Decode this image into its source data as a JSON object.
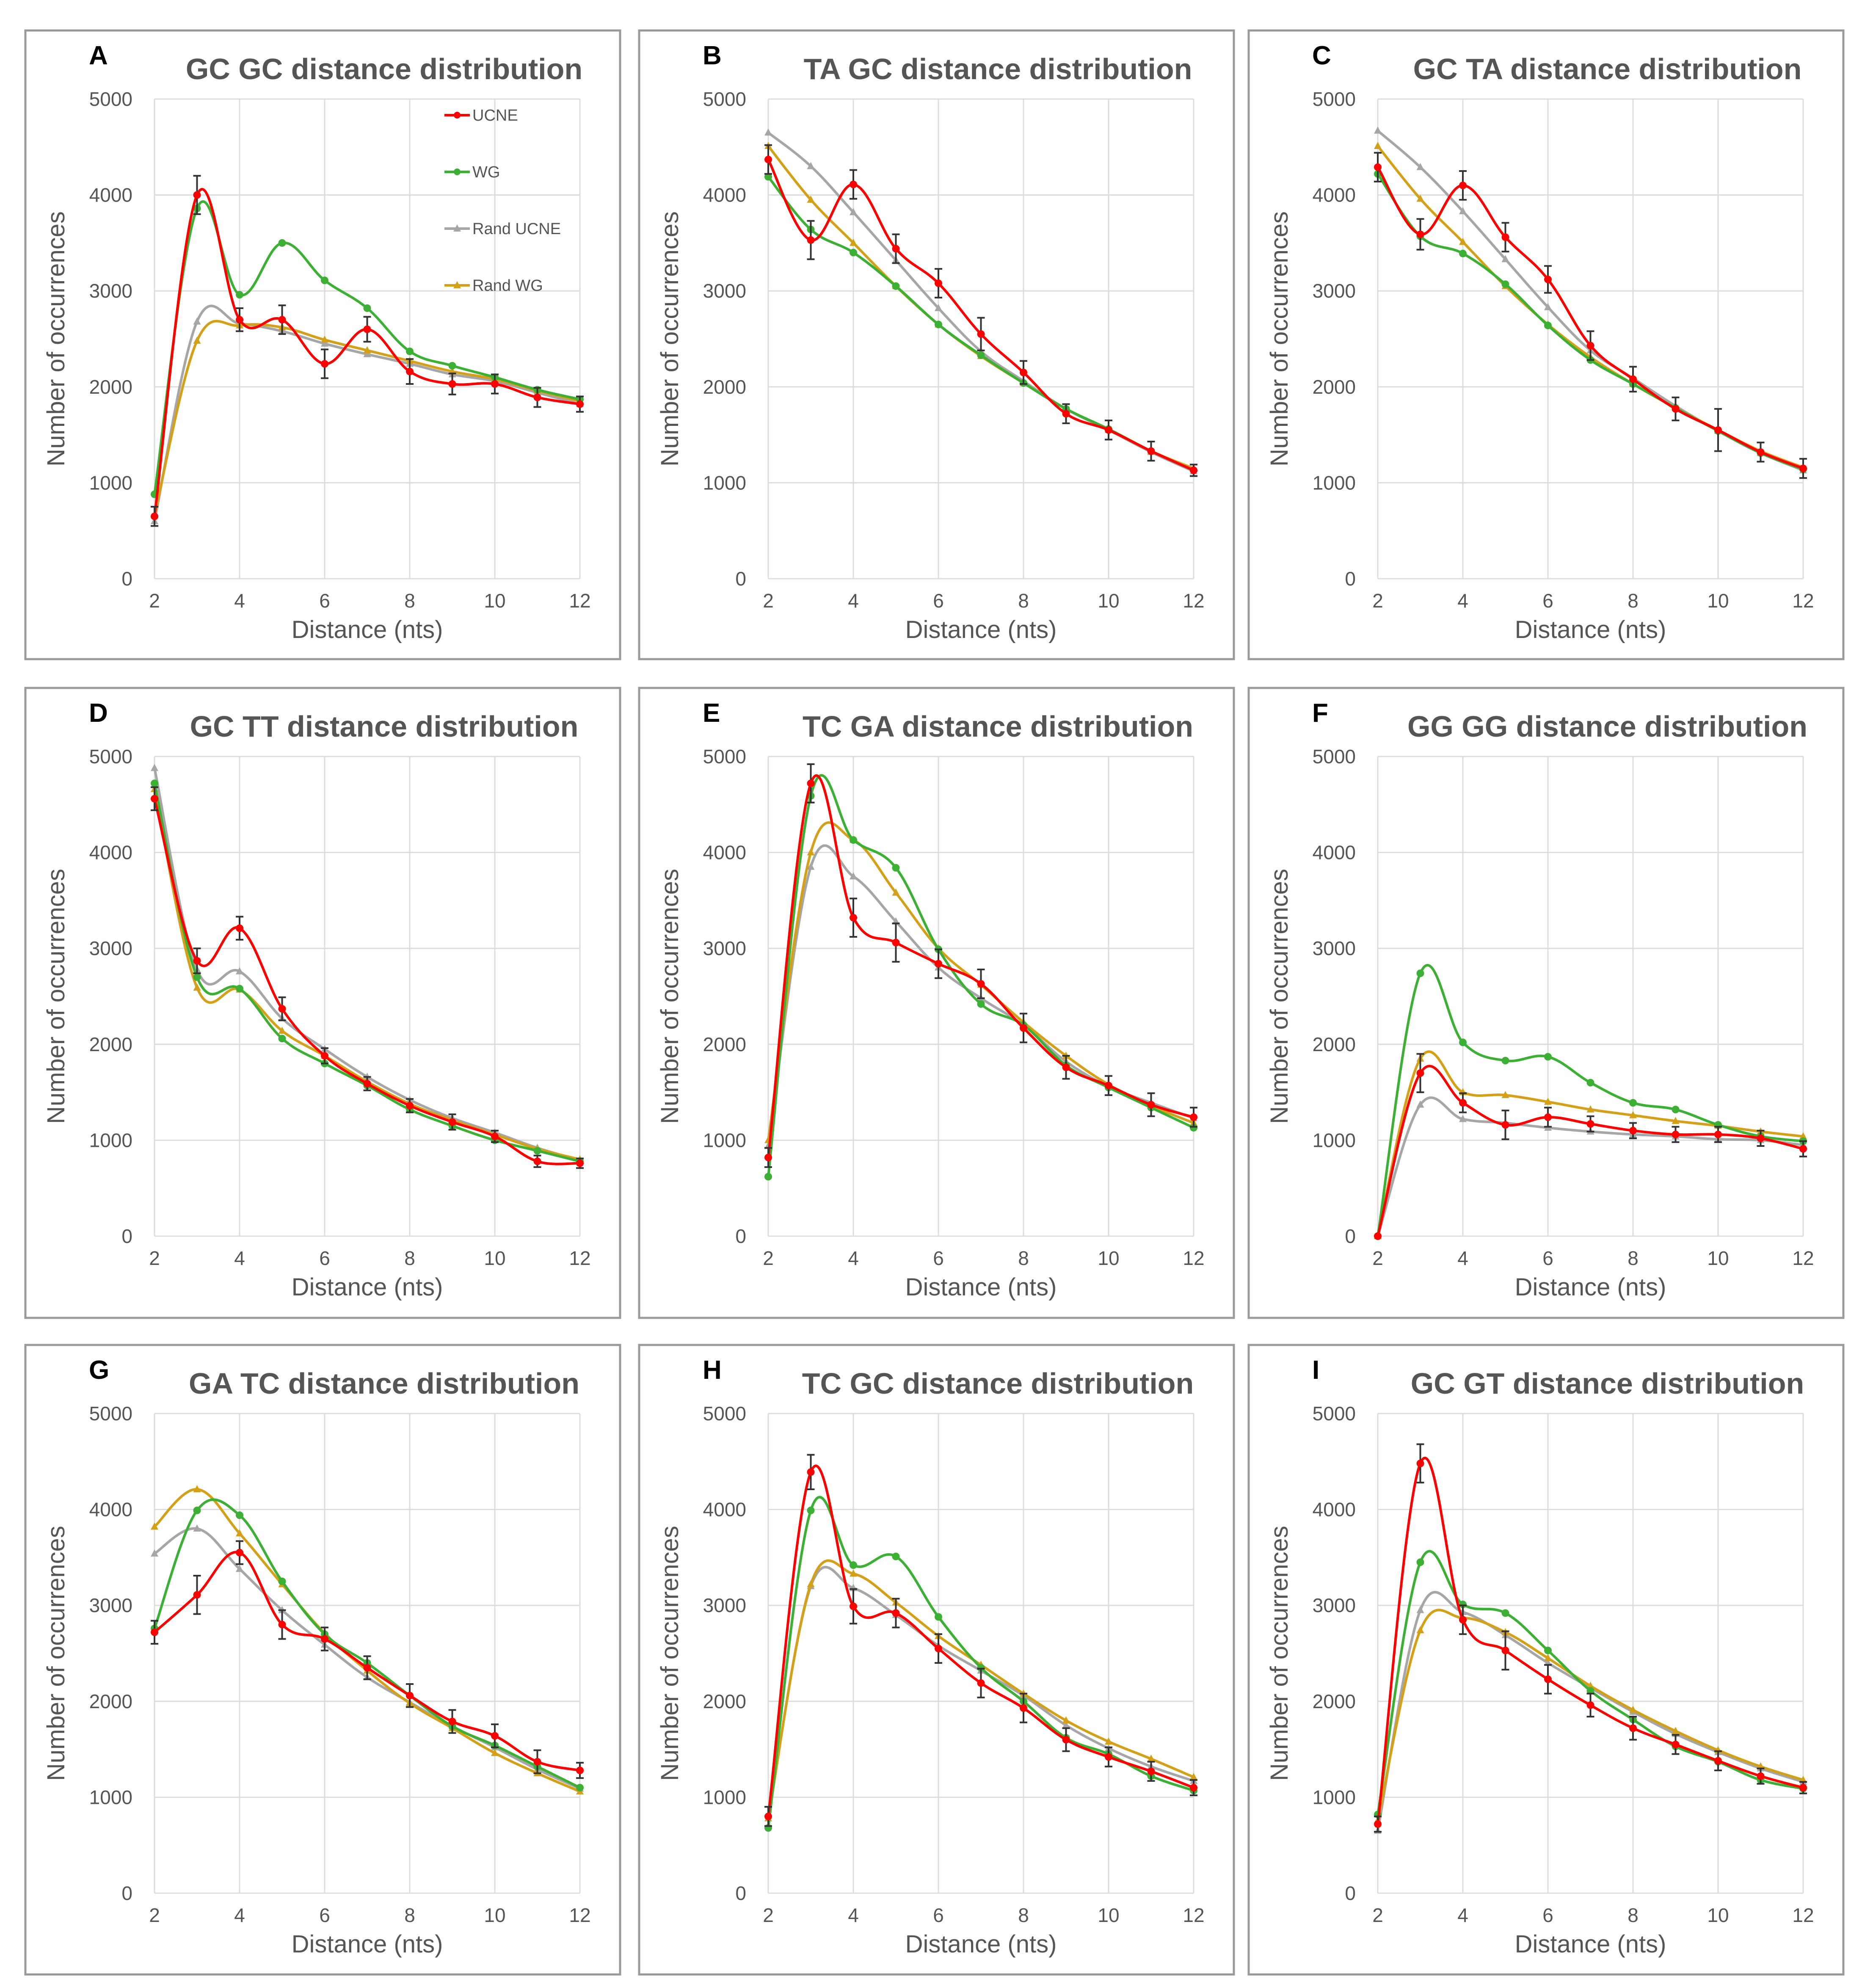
{
  "colors": {
    "UCNE": "#ff0000",
    "WG": "#3cb034",
    "Rand UCNE": "#a6a6a6",
    "Rand WG": "#d4a017"
  },
  "chart_data": [
    {
      "type": "line",
      "letter": "A",
      "title": "GC GC distance distribution",
      "xlabel": "Distance (nts)",
      "ylabel": "Number of occurrences",
      "x": [
        2,
        3,
        4,
        5,
        6,
        7,
        8,
        9,
        10,
        11,
        12
      ],
      "xticks": [
        "2",
        "4",
        "6",
        "8",
        "10",
        "12"
      ],
      "ylim": [
        0,
        5000
      ],
      "yticks": [
        "0",
        "1000",
        "2000",
        "3000",
        "4000",
        "5000"
      ],
      "legend": [
        "UCNE",
        "WG",
        "Rand UCNE",
        "Rand WG"
      ],
      "series": [
        {
          "name": "UCNE",
          "values": [
            650,
            4000,
            2700,
            2700,
            2240,
            2600,
            2160,
            2030,
            2030,
            1890,
            1820
          ],
          "error": [
            100,
            200,
            120,
            150,
            150,
            130,
            130,
            110,
            100,
            100,
            80
          ]
        },
        {
          "name": "WG",
          "values": [
            880,
            3860,
            2960,
            3500,
            3110,
            2820,
            2370,
            2220,
            2100,
            1970,
            1870
          ]
        },
        {
          "name": "Rand UCNE",
          "values": [
            600,
            2680,
            2660,
            2580,
            2450,
            2340,
            2240,
            2130,
            2060,
            1940,
            1820
          ]
        },
        {
          "name": "Rand WG",
          "values": [
            660,
            2480,
            2640,
            2620,
            2490,
            2380,
            2270,
            2160,
            2080,
            1960,
            1850
          ]
        }
      ]
    },
    {
      "type": "line",
      "letter": "B",
      "title": "TA GC distance distribution",
      "xlabel": "Distance (nts)",
      "ylabel": "Number of occurrences",
      "x": [
        2,
        3,
        4,
        5,
        6,
        7,
        8,
        9,
        10,
        11,
        12
      ],
      "xticks": [
        "2",
        "4",
        "6",
        "8",
        "10",
        "12"
      ],
      "ylim": [
        0,
        5000
      ],
      "yticks": [
        "0",
        "1000",
        "2000",
        "3000",
        "4000",
        "5000"
      ],
      "series": [
        {
          "name": "UCNE",
          "values": [
            4370,
            3530,
            4110,
            3440,
            3080,
            2550,
            2150,
            1720,
            1550,
            1330,
            1130
          ],
          "error": [
            150,
            200,
            150,
            150,
            150,
            170,
            120,
            100,
            100,
            100,
            60
          ]
        },
        {
          "name": "WG",
          "values": [
            4190,
            3640,
            3400,
            3050,
            2650,
            2330,
            2040,
            1770,
            1560,
            1330,
            1130
          ]
        },
        {
          "name": "Rand UCNE",
          "values": [
            4650,
            4300,
            3820,
            3320,
            2820,
            2370,
            2060,
            1770,
            1550,
            1320,
            1120
          ]
        },
        {
          "name": "Rand WG",
          "values": [
            4510,
            3950,
            3500,
            3050,
            2650,
            2320,
            2040,
            1770,
            1560,
            1330,
            1150
          ]
        }
      ]
    },
    {
      "type": "line",
      "letter": "C",
      "title": "GC TA distance distribution",
      "xlabel": "Distance (nts)",
      "ylabel": "Number of occurrences",
      "x": [
        2,
        3,
        4,
        5,
        6,
        7,
        8,
        9,
        10,
        11,
        12
      ],
      "xticks": [
        "2",
        "4",
        "6",
        "8",
        "10",
        "12"
      ],
      "ylim": [
        0,
        5000
      ],
      "yticks": [
        "0",
        "1000",
        "2000",
        "3000",
        "4000",
        "5000"
      ],
      "series": [
        {
          "name": "UCNE",
          "values": [
            4290,
            3590,
            4100,
            3560,
            3120,
            2430,
            2080,
            1770,
            1550,
            1320,
            1150
          ],
          "error": [
            150,
            160,
            150,
            150,
            140,
            150,
            130,
            120,
            220,
            100,
            100
          ]
        },
        {
          "name": "WG",
          "values": [
            4220,
            3570,
            3390,
            3070,
            2640,
            2280,
            2030,
            1780,
            1540,
            1310,
            1140
          ]
        },
        {
          "name": "Rand UCNE",
          "values": [
            4670,
            4290,
            3830,
            3330,
            2830,
            2380,
            2090,
            1800,
            1540,
            1310,
            1130
          ]
        },
        {
          "name": "Rand WG",
          "values": [
            4510,
            3960,
            3510,
            3050,
            2650,
            2310,
            2030,
            1780,
            1550,
            1330,
            1160
          ]
        }
      ]
    },
    {
      "type": "line",
      "letter": "D",
      "title": "GC TT distance distribution",
      "xlabel": "Distance (nts)",
      "ylabel": "Number of occurrences",
      "x": [
        2,
        3,
        4,
        5,
        6,
        7,
        8,
        9,
        10,
        11,
        12
      ],
      "xticks": [
        "2",
        "4",
        "6",
        "8",
        "10",
        "12"
      ],
      "ylim": [
        0,
        5000
      ],
      "yticks": [
        "0",
        "1000",
        "2000",
        "3000",
        "4000",
        "5000"
      ],
      "series": [
        {
          "name": "UCNE",
          "values": [
            4560,
            2870,
            3210,
            2370,
            1880,
            1590,
            1360,
            1190,
            1040,
            780,
            760
          ],
          "error": [
            120,
            130,
            120,
            120,
            80,
            70,
            70,
            80,
            60,
            60,
            50
          ]
        },
        {
          "name": "WG",
          "values": [
            4720,
            2700,
            2580,
            2060,
            1800,
            1570,
            1320,
            1150,
            1000,
            890,
            780
          ]
        },
        {
          "name": "Rand UCNE",
          "values": [
            4880,
            2780,
            2760,
            2270,
            1950,
            1660,
            1420,
            1230,
            1080,
            920,
            790
          ]
        },
        {
          "name": "Rand WG",
          "values": [
            4660,
            2590,
            2570,
            2140,
            1880,
            1610,
            1380,
            1210,
            1060,
            910,
            800
          ]
        }
      ]
    },
    {
      "type": "line",
      "letter": "E",
      "title": "TC GA distance distribution",
      "xlabel": "Distance (nts)",
      "ylabel": "Number of occurrences",
      "x": [
        2,
        3,
        4,
        5,
        6,
        7,
        8,
        9,
        10,
        11,
        12
      ],
      "xticks": [
        "2",
        "4",
        "6",
        "8",
        "10",
        "12"
      ],
      "ylim": [
        0,
        5000
      ],
      "yticks": [
        "0",
        "1000",
        "2000",
        "3000",
        "4000",
        "5000"
      ],
      "series": [
        {
          "name": "UCNE",
          "values": [
            820,
            4720,
            3320,
            3060,
            2840,
            2630,
            2170,
            1760,
            1570,
            1370,
            1240
          ],
          "error": [
            100,
            200,
            200,
            200,
            150,
            150,
            150,
            120,
            100,
            120,
            100
          ]
        },
        {
          "name": "WG",
          "values": [
            620,
            4590,
            4130,
            3840,
            2990,
            2420,
            2200,
            1780,
            1550,
            1340,
            1130
          ]
        },
        {
          "name": "Rand UCNE",
          "values": [
            940,
            3850,
            3750,
            3280,
            2800,
            2480,
            2200,
            1820,
            1560,
            1390,
            1230
          ]
        },
        {
          "name": "Rand WG",
          "values": [
            1000,
            4000,
            4130,
            3580,
            3000,
            2620,
            2230,
            1880,
            1580,
            1360,
            1180
          ]
        }
      ]
    },
    {
      "type": "line",
      "letter": "F",
      "title": "GG GG distance distribution",
      "xlabel": "Distance (nts)",
      "ylabel": "Number of occurrences",
      "x": [
        2,
        3,
        4,
        5,
        6,
        7,
        8,
        9,
        10,
        11,
        12
      ],
      "xticks": [
        "2",
        "4",
        "6",
        "8",
        "10",
        "12"
      ],
      "ylim": [
        0,
        5000
      ],
      "yticks": [
        "0",
        "1000",
        "2000",
        "3000",
        "4000",
        "5000"
      ],
      "series": [
        {
          "name": "UCNE",
          "values": [
            0,
            1700,
            1390,
            1160,
            1240,
            1170,
            1100,
            1060,
            1060,
            1020,
            910
          ],
          "error": [
            0,
            200,
            100,
            150,
            100,
            80,
            80,
            80,
            80,
            80,
            80
          ]
        },
        {
          "name": "WG",
          "values": [
            0,
            2740,
            2020,
            1830,
            1870,
            1600,
            1390,
            1320,
            1160,
            1040,
            990
          ]
        },
        {
          "name": "Rand UCNE",
          "values": [
            0,
            1370,
            1220,
            1180,
            1130,
            1090,
            1060,
            1040,
            1010,
            1000,
            950
          ]
        },
        {
          "name": "Rand WG",
          "values": [
            0,
            1850,
            1500,
            1470,
            1400,
            1320,
            1260,
            1200,
            1150,
            1090,
            1040
          ]
        }
      ]
    },
    {
      "type": "line",
      "letter": "G",
      "title": "GA TC distance distribution",
      "xlabel": "Distance (nts)",
      "ylabel": "Number of occurrences",
      "x": [
        2,
        3,
        4,
        5,
        6,
        7,
        8,
        9,
        10,
        11,
        12
      ],
      "xticks": [
        "2",
        "4",
        "6",
        "8",
        "10",
        "12"
      ],
      "ylim": [
        0,
        5000
      ],
      "yticks": [
        "0",
        "1000",
        "2000",
        "3000",
        "4000",
        "5000"
      ],
      "series": [
        {
          "name": "UCNE",
          "values": [
            2720,
            3110,
            3550,
            2800,
            2650,
            2350,
            2060,
            1790,
            1640,
            1370,
            1280
          ],
          "error": [
            120,
            200,
            120,
            150,
            120,
            120,
            120,
            120,
            120,
            120,
            80
          ]
        },
        {
          "name": "WG",
          "values": [
            2760,
            3990,
            3940,
            3250,
            2700,
            2400,
            2060,
            1740,
            1540,
            1320,
            1100
          ]
        },
        {
          "name": "Rand UCNE",
          "values": [
            3540,
            3800,
            3380,
            2950,
            2590,
            2250,
            1990,
            1740,
            1520,
            1290,
            1090
          ]
        },
        {
          "name": "Rand WG",
          "values": [
            3820,
            4210,
            3750,
            3220,
            2710,
            2320,
            1980,
            1720,
            1460,
            1250,
            1060
          ]
        }
      ]
    },
    {
      "type": "line",
      "letter": "H",
      "title": "TC GC distance distribution",
      "xlabel": "Distance (nts)",
      "ylabel": "Number of occurrences",
      "x": [
        2,
        3,
        4,
        5,
        6,
        7,
        8,
        9,
        10,
        11,
        12
      ],
      "xticks": [
        "2",
        "4",
        "6",
        "8",
        "10",
        "12"
      ],
      "ylim": [
        0,
        5000
      ],
      "yticks": [
        "0",
        "1000",
        "2000",
        "3000",
        "4000",
        "5000"
      ],
      "series": [
        {
          "name": "UCNE",
          "values": [
            800,
            4390,
            2990,
            2920,
            2550,
            2190,
            1930,
            1600,
            1420,
            1270,
            1100
          ],
          "error": [
            100,
            180,
            180,
            150,
            150,
            150,
            150,
            120,
            100,
            100,
            80
          ]
        },
        {
          "name": "WG",
          "values": [
            680,
            3990,
            3420,
            3510,
            2880,
            2350,
            2000,
            1620,
            1450,
            1220,
            1070
          ]
        },
        {
          "name": "Rand UCNE",
          "values": [
            780,
            3200,
            3180,
            2900,
            2580,
            2320,
            2060,
            1750,
            1510,
            1320,
            1170
          ]
        },
        {
          "name": "Rand WG",
          "values": [
            780,
            3220,
            3330,
            3030,
            2680,
            2380,
            2080,
            1800,
            1580,
            1400,
            1210
          ]
        }
      ]
    },
    {
      "type": "line",
      "letter": "I",
      "title": "GC GT distance distribution",
      "xlabel": "Distance (nts)",
      "ylabel": "Number of occurrences",
      "x": [
        2,
        3,
        4,
        5,
        6,
        7,
        8,
        9,
        10,
        11,
        12
      ],
      "xticks": [
        "2",
        "4",
        "6",
        "8",
        "10",
        "12"
      ],
      "ylim": [
        0,
        5000
      ],
      "yticks": [
        "0",
        "1000",
        "2000",
        "3000",
        "4000",
        "5000"
      ],
      "series": [
        {
          "name": "UCNE",
          "values": [
            720,
            4480,
            2850,
            2530,
            2230,
            1960,
            1720,
            1550,
            1380,
            1220,
            1100
          ],
          "error": [
            80,
            200,
            150,
            200,
            150,
            120,
            120,
            100,
            100,
            80,
            60
          ]
        },
        {
          "name": "WG",
          "values": [
            820,
            3450,
            3010,
            2920,
            2530,
            2110,
            1810,
            1530,
            1370,
            1180,
            1090
          ]
        },
        {
          "name": "Rand UCNE",
          "values": [
            650,
            2950,
            2930,
            2690,
            2400,
            2140,
            1890,
            1660,
            1470,
            1300,
            1160
          ]
        },
        {
          "name": "Rand WG",
          "values": [
            760,
            2740,
            2870,
            2720,
            2450,
            2160,
            1910,
            1690,
            1490,
            1320,
            1180
          ]
        }
      ]
    }
  ]
}
